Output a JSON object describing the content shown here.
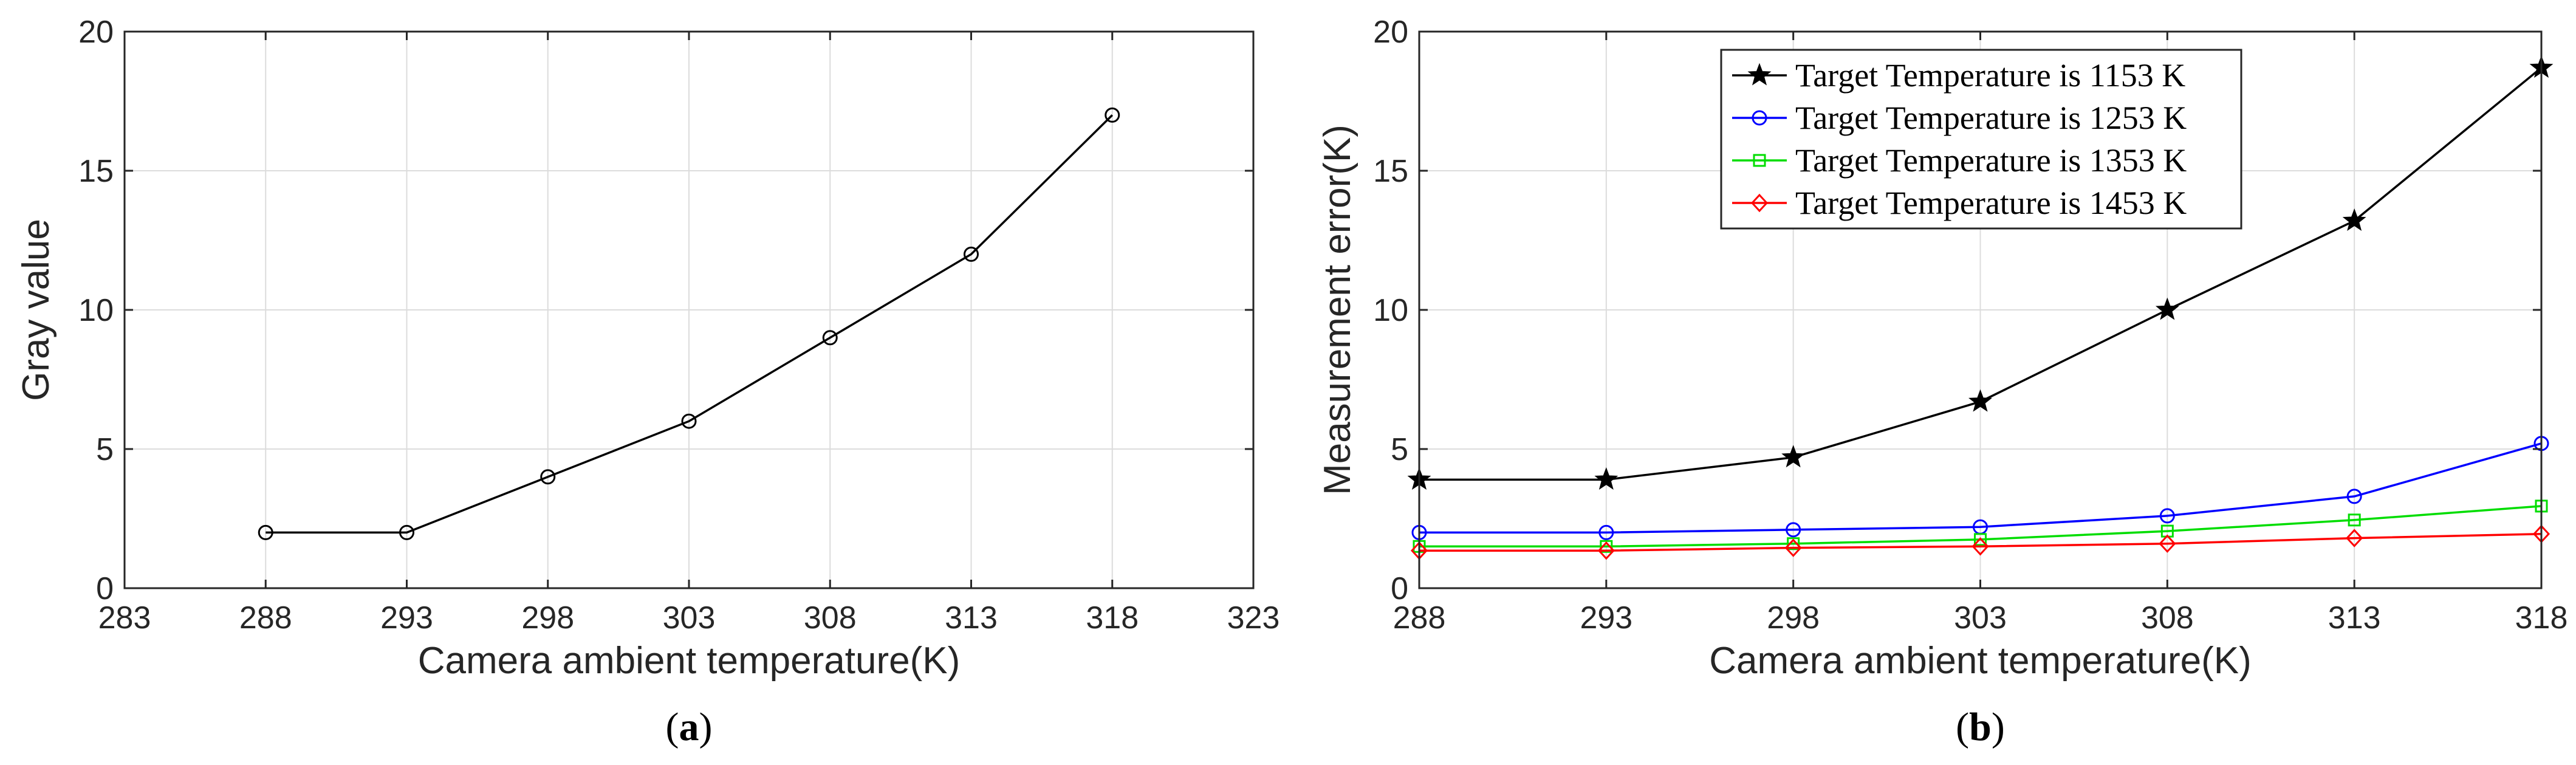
{
  "chart_data": [
    {
      "type": "line",
      "title": "",
      "caption_letter": "a",
      "xlabel": "Camera ambient temperature(K)",
      "ylabel": "Gray value",
      "xlim": [
        283,
        323
      ],
      "ylim": [
        0,
        20
      ],
      "xticks": [
        283,
        288,
        293,
        298,
        303,
        308,
        313,
        318,
        323
      ],
      "yticks": [
        0,
        5,
        10,
        15,
        20
      ],
      "grid": true,
      "x": [
        288,
        293,
        298,
        303,
        308,
        313,
        318
      ],
      "series": [
        {
          "values": [
            2,
            2,
            4,
            6,
            9,
            12,
            17
          ],
          "color": "#000000",
          "marker": "circle"
        }
      ]
    },
    {
      "type": "line",
      "title": "",
      "caption_letter": "b",
      "xlabel": "Camera ambient temperature(K)",
      "ylabel": "Measurement error(K)",
      "xlim": [
        288,
        318
      ],
      "ylim": [
        0,
        20
      ],
      "xticks": [
        288,
        293,
        298,
        303,
        308,
        313,
        318
      ],
      "yticks": [
        0,
        5,
        10,
        15,
        20
      ],
      "grid": true,
      "legend": "top-center",
      "x": [
        288,
        293,
        298,
        303,
        308,
        313,
        318
      ],
      "series": [
        {
          "name": "Target Temperature is 1153 K",
          "values": [
            3.9,
            3.9,
            4.7,
            6.7,
            10.0,
            13.2,
            18.7
          ],
          "color": "#000000",
          "marker": "star"
        },
        {
          "name": "Target Temperature is 1253 K",
          "values": [
            2.0,
            2.0,
            2.1,
            2.2,
            2.6,
            3.3,
            5.2
          ],
          "color": "#0000ff",
          "marker": "circle"
        },
        {
          "name": "Target Temperature is 1353 K",
          "values": [
            1.5,
            1.5,
            1.6,
            1.75,
            2.05,
            2.45,
            2.95
          ],
          "color": "#00dd00",
          "marker": "square"
        },
        {
          "name": "Target Temperature is 1453 K",
          "values": [
            1.35,
            1.35,
            1.45,
            1.5,
            1.6,
            1.8,
            1.95
          ],
          "color": "#ff0000",
          "marker": "diamond"
        }
      ]
    }
  ]
}
